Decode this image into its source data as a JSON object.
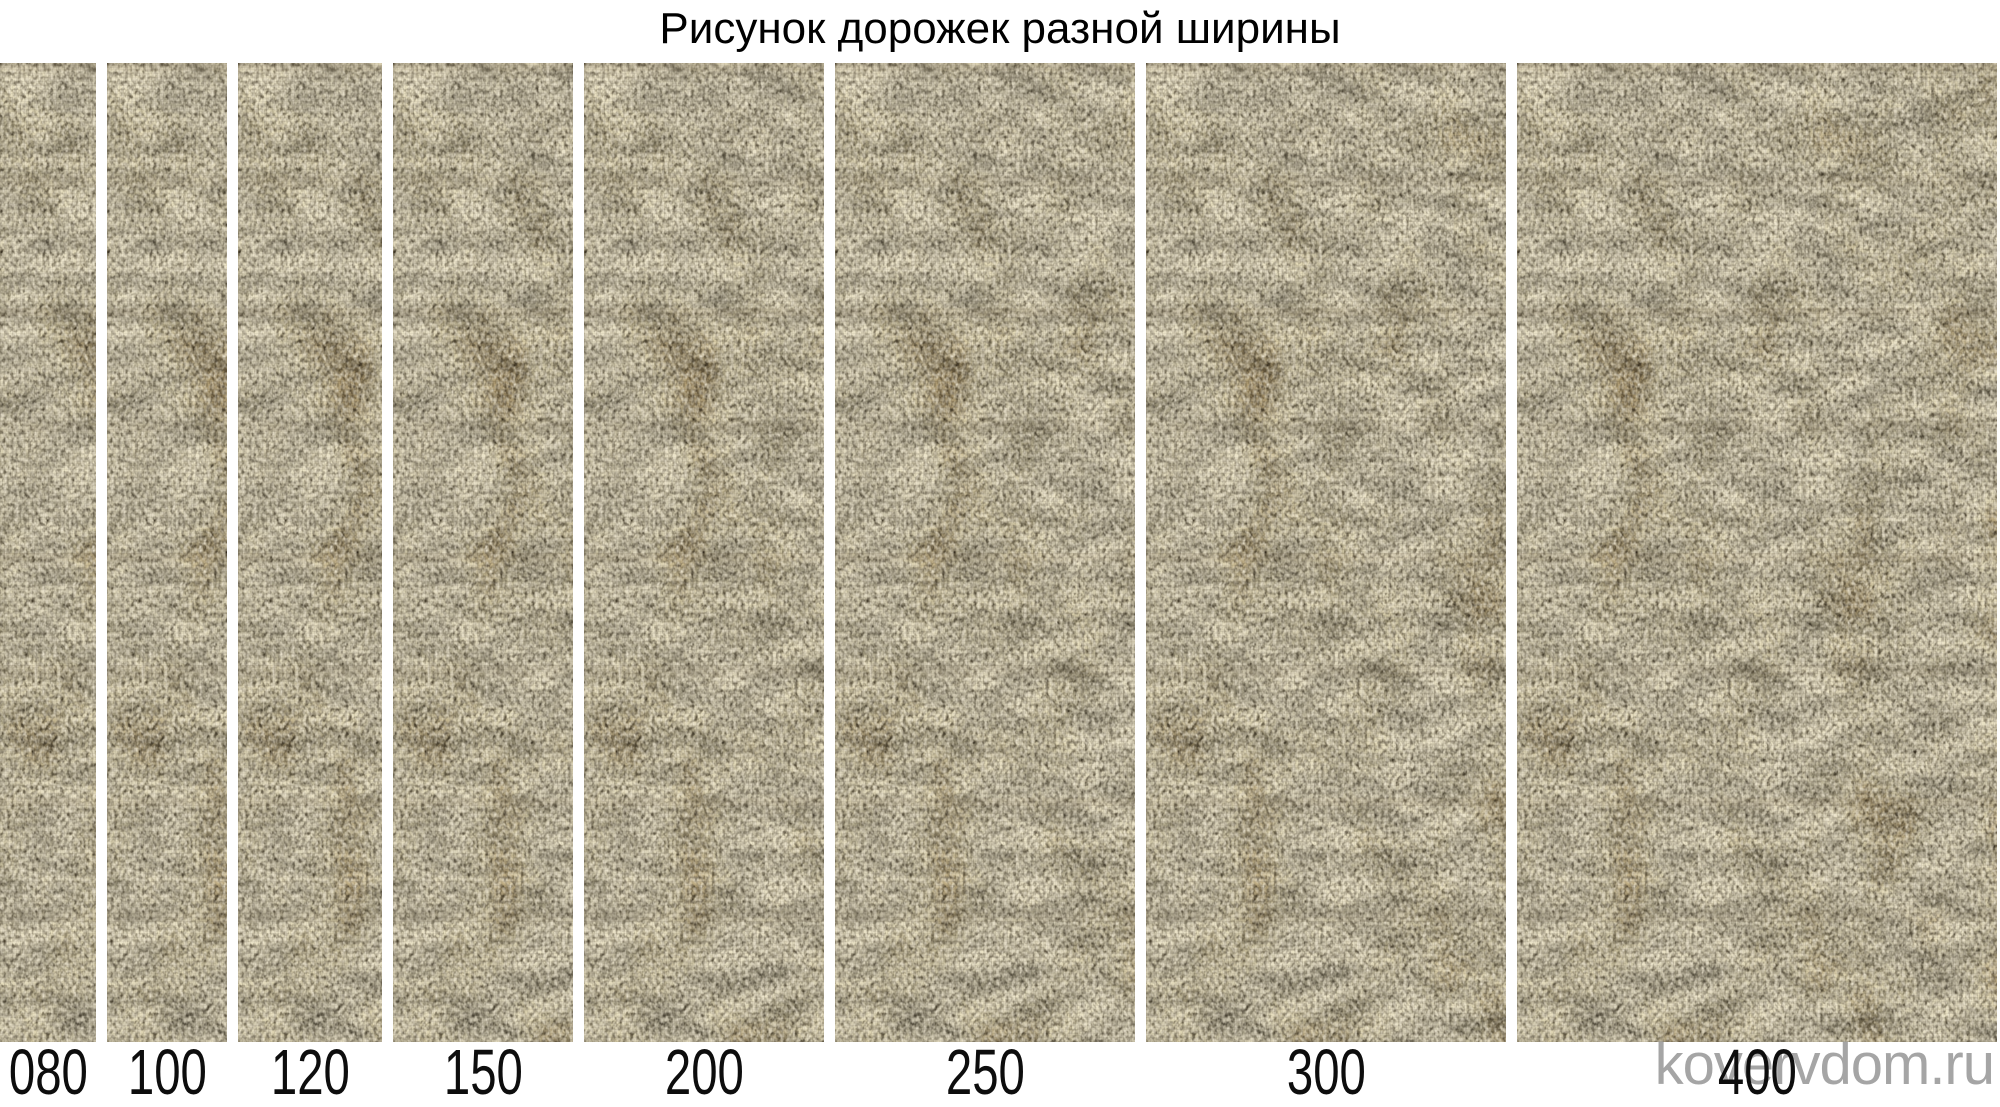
{
  "title": "Рисунок дорожек разной ширины",
  "watermark": "kovervdom.ru",
  "strips": [
    {
      "label": "080",
      "width_cm": 80
    },
    {
      "label": "100",
      "width_cm": 100
    },
    {
      "label": "120",
      "width_cm": 120
    },
    {
      "label": "150",
      "width_cm": 150
    },
    {
      "label": "200",
      "width_cm": 200
    },
    {
      "label": "250",
      "width_cm": 250
    },
    {
      "label": "300",
      "width_cm": 300
    },
    {
      "label": "400",
      "width_cm": 400
    }
  ],
  "colors": {
    "background": "#ffffff",
    "title_text": "#000000",
    "label_text": "#0d0d0d",
    "watermark_text": "#8f8f8f",
    "carpet_cream": "#e7dfca",
    "carpet_beige": "#cfc2a2",
    "carpet_tan": "#ab9263",
    "carpet_brown": "#7d6c4e",
    "carpet_gray": "#6e6a5f"
  }
}
